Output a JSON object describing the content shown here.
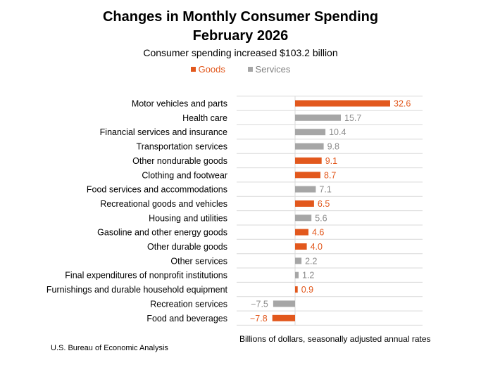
{
  "title_line1": "Changes in Monthly Consumer Spending",
  "title_line2": "February 2026",
  "subtitle": "Consumer spending increased $103.2 billion",
  "legend": {
    "goods": "Goods",
    "services": "Services"
  },
  "axis_note": "Billions of dollars, seasonally adjusted annual rates",
  "source": "U.S. Bureau of Economic Analysis",
  "colors": {
    "goods": "#e2581d",
    "services": "#a6a6a6",
    "grid": "#d9d9d9"
  },
  "chart_data": {
    "type": "bar",
    "orientation": "horizontal",
    "grid": true,
    "legend_position": "top",
    "xlim": [
      -10,
      35
    ],
    "categories": [
      "Motor vehicles and parts",
      "Health care",
      "Financial services and insurance",
      "Transportation services",
      "Other nondurable goods",
      "Clothing and footwear",
      "Food services and accommodations",
      "Recreational goods and vehicles",
      "Housing and utilities",
      "Gasoline and other energy goods",
      "Other durable goods",
      "Other services",
      "Final expenditures of nonprofit institutions",
      "Furnishings and durable household equipment",
      "Recreation services",
      "Food and beverages"
    ],
    "values": [
      32.6,
      15.7,
      10.4,
      9.8,
      9.1,
      8.7,
      7.1,
      6.5,
      5.6,
      4.6,
      4.0,
      2.2,
      1.2,
      0.9,
      -7.5,
      -7.8
    ],
    "value_labels": [
      "32.6",
      "15.7",
      "10.4",
      "9.8",
      "9.1",
      "8.7",
      "7.1",
      "6.5",
      "5.6",
      "4.6",
      "4.0",
      "2.2",
      "1.2",
      "0.9",
      "−7.5",
      "−7.8"
    ],
    "groups": [
      "goods",
      "services",
      "services",
      "services",
      "goods",
      "goods",
      "services",
      "goods",
      "services",
      "goods",
      "goods",
      "services",
      "services",
      "goods",
      "services",
      "goods"
    ]
  }
}
